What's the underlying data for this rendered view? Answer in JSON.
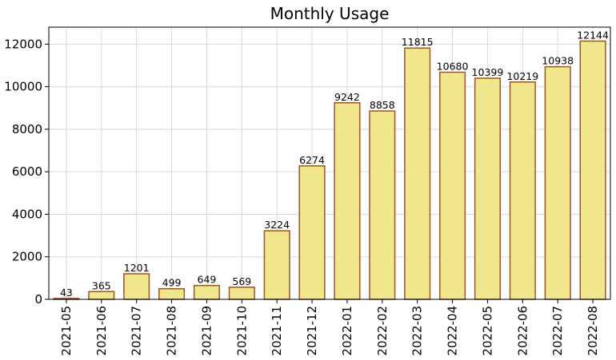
{
  "chart_data": {
    "type": "bar",
    "title": "Monthly Usage",
    "xlabel": "",
    "ylabel": "",
    "categories": [
      "2021-05",
      "2021-06",
      "2021-07",
      "2021-08",
      "2021-09",
      "2021-10",
      "2021-11",
      "2021-12",
      "2022-01",
      "2022-02",
      "2022-03",
      "2022-04",
      "2022-05",
      "2022-06",
      "2022-07",
      "2022-08"
    ],
    "values": [
      43,
      365,
      1201,
      499,
      649,
      569,
      3224,
      6274,
      9242,
      8858,
      11815,
      10680,
      10399,
      10219,
      10938,
      12144
    ],
    "ylim": [
      0,
      12800
    ],
    "yticks": [
      0,
      2000,
      4000,
      6000,
      8000,
      10000,
      12000
    ],
    "grid": true,
    "legend": "none",
    "colors": {
      "bar_fill": "#f0e68c",
      "bar_edge": "#a0522d",
      "grid": "#d9d9d9"
    }
  }
}
